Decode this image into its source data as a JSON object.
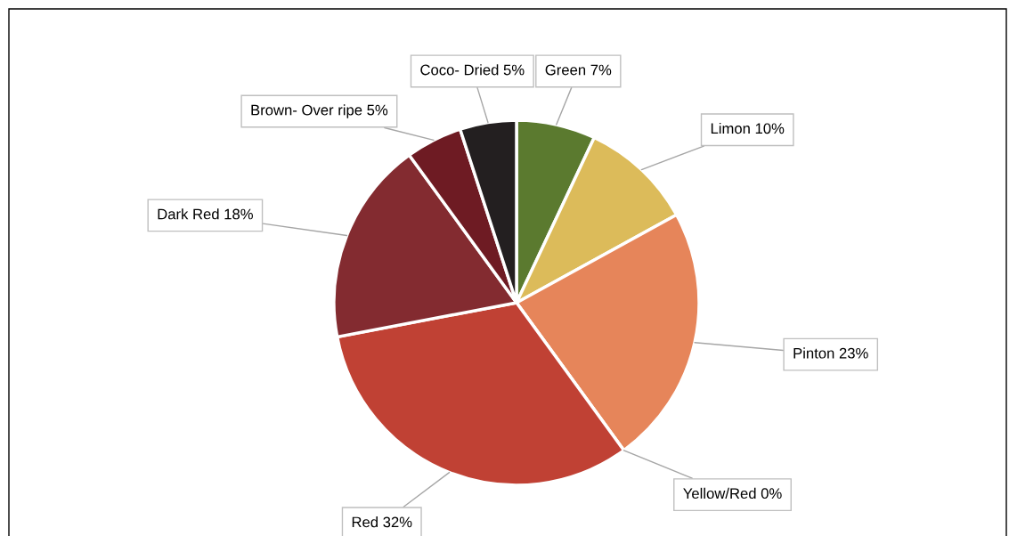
{
  "chart_data": {
    "type": "pie",
    "categories": [
      "Green",
      "Limon",
      "Pinton",
      "Yellow/Red",
      "Red",
      "Dark Red",
      "Brown- Over ripe",
      "Coco- Dried"
    ],
    "values": [
      7,
      10,
      23,
      0,
      32,
      18,
      5,
      5
    ],
    "colors": [
      "#5b7a2f",
      "#dcbb5a",
      "#e6855a",
      "#d9603b",
      "#c04134",
      "#832b30",
      "#6e1b23",
      "#231f20"
    ],
    "value_labels": [
      "7%",
      "10%",
      "23%",
      "0%",
      "32%",
      "18%",
      "5%",
      "5%"
    ]
  }
}
